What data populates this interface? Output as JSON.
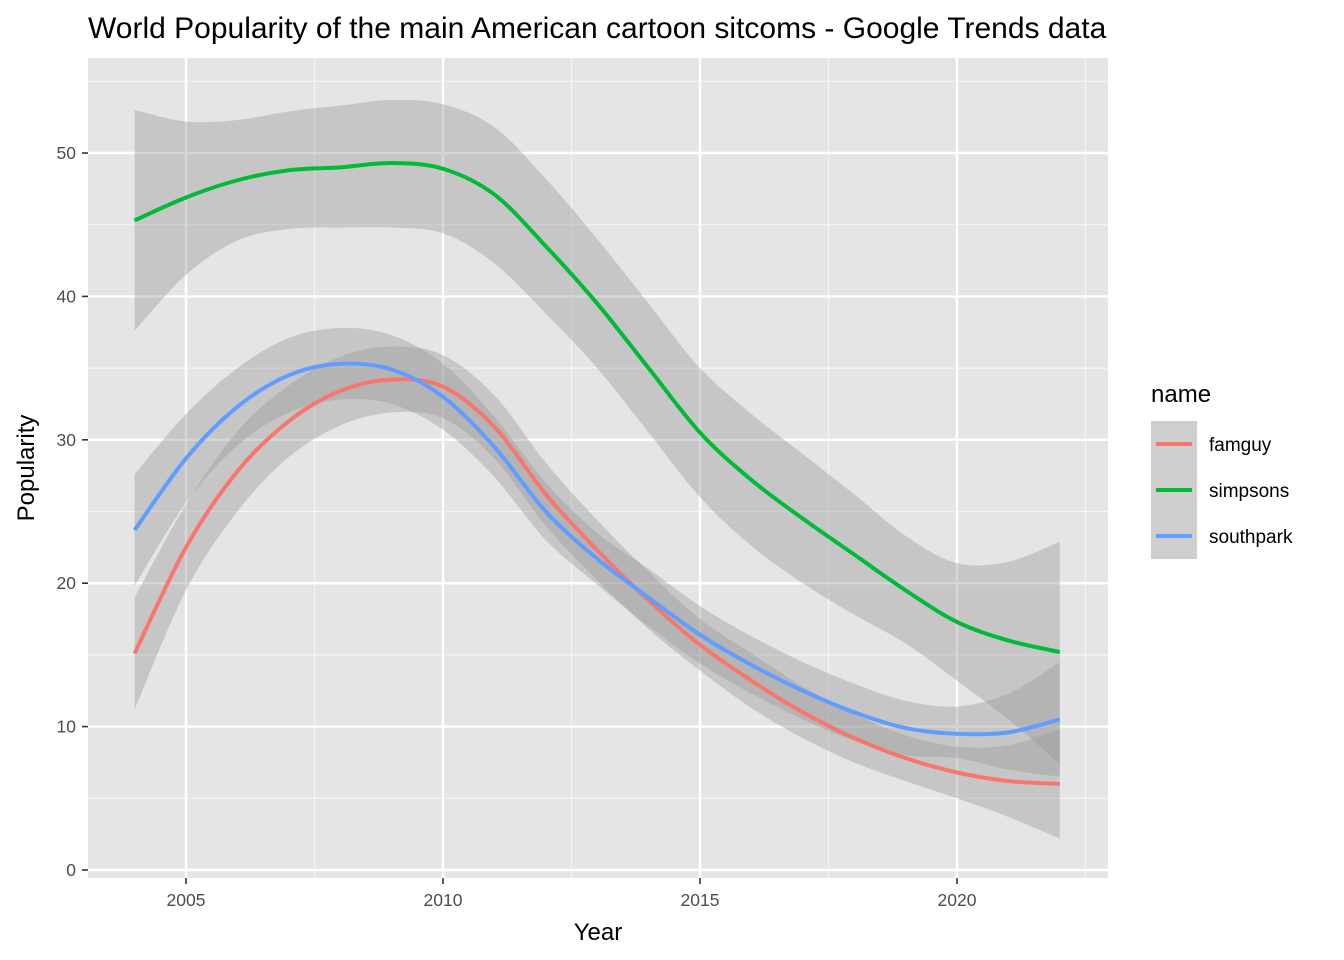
{
  "chart_data": {
    "type": "line",
    "title": "World Popularity of the main American cartoon sitcoms - Google Trends data",
    "xlabel": "Year",
    "ylabel": "Popularity",
    "xlim": [
      2003.5,
      2022.5
    ],
    "ylim": [
      0,
      55
    ],
    "x_ticks": [
      2005,
      2010,
      2015,
      2020
    ],
    "y_ticks": [
      0,
      10,
      20,
      30,
      40,
      50
    ],
    "grid": true,
    "legend": {
      "title": "name",
      "position": "right"
    },
    "x": [
      2004,
      2005,
      2006,
      2007,
      2008,
      2009,
      2010,
      2011,
      2012,
      2013,
      2014,
      2015,
      2016,
      2017,
      2018,
      2019,
      2020,
      2021,
      2022
    ],
    "series": [
      {
        "name": "famguy",
        "color": "#F8766D",
        "values": [
          15.1,
          22.5,
          27.8,
          31.3,
          33.4,
          34.2,
          33.7,
          30.9,
          26.2,
          22.3,
          18.8,
          15.7,
          13.2,
          11.0,
          9.2,
          7.8,
          6.8,
          6.2,
          6.0
        ],
        "lower": [
          11.2,
          19.5,
          25.0,
          28.8,
          31.0,
          31.9,
          31.5,
          28.7,
          24.0,
          20.2,
          16.8,
          13.9,
          11.3,
          9.2,
          7.5,
          6.2,
          5.0,
          3.7,
          2.2
        ],
        "upper": [
          19.0,
          25.5,
          30.6,
          33.8,
          35.8,
          36.5,
          35.9,
          33.1,
          28.4,
          24.4,
          20.8,
          17.5,
          15.1,
          12.8,
          10.9,
          9.4,
          8.6,
          8.7,
          9.8
        ]
      },
      {
        "name": "simpsons",
        "color": "#00BA38",
        "values": [
          45.3,
          46.9,
          48.1,
          48.8,
          49.0,
          49.3,
          48.9,
          47.1,
          43.5,
          39.5,
          35.0,
          30.5,
          27.2,
          24.5,
          22.0,
          19.5,
          17.3,
          16.0,
          15.2
        ],
        "lower": [
          37.6,
          41.5,
          43.9,
          44.7,
          44.8,
          44.8,
          44.4,
          42.3,
          38.8,
          35.0,
          30.5,
          26.0,
          22.6,
          20.0,
          17.8,
          15.8,
          13.2,
          10.5,
          7.4
        ],
        "upper": [
          53.0,
          52.2,
          52.3,
          52.9,
          53.3,
          53.7,
          53.4,
          51.8,
          48.2,
          44.0,
          39.5,
          35.0,
          31.8,
          29.0,
          26.2,
          23.3,
          21.4,
          21.5,
          22.9
        ]
      },
      {
        "name": "southpark",
        "color": "#619CFF",
        "values": [
          23.7,
          28.7,
          32.3,
          34.5,
          35.3,
          34.9,
          33.0,
          29.5,
          25.0,
          21.7,
          19.0,
          16.4,
          14.3,
          12.5,
          11.0,
          9.9,
          9.5,
          9.6,
          10.5
        ],
        "lower": [
          19.8,
          25.6,
          29.6,
          31.9,
          32.8,
          32.5,
          30.7,
          27.4,
          23.0,
          19.9,
          17.0,
          14.4,
          12.3,
          10.5,
          9.0,
          8.0,
          7.8,
          7.0,
          6.5
        ],
        "upper": [
          27.6,
          31.8,
          35.0,
          37.1,
          37.8,
          37.3,
          35.3,
          31.6,
          27.0,
          23.5,
          21.0,
          18.4,
          16.3,
          14.5,
          13.0,
          11.8,
          11.4,
          12.3,
          14.5
        ]
      }
    ]
  }
}
